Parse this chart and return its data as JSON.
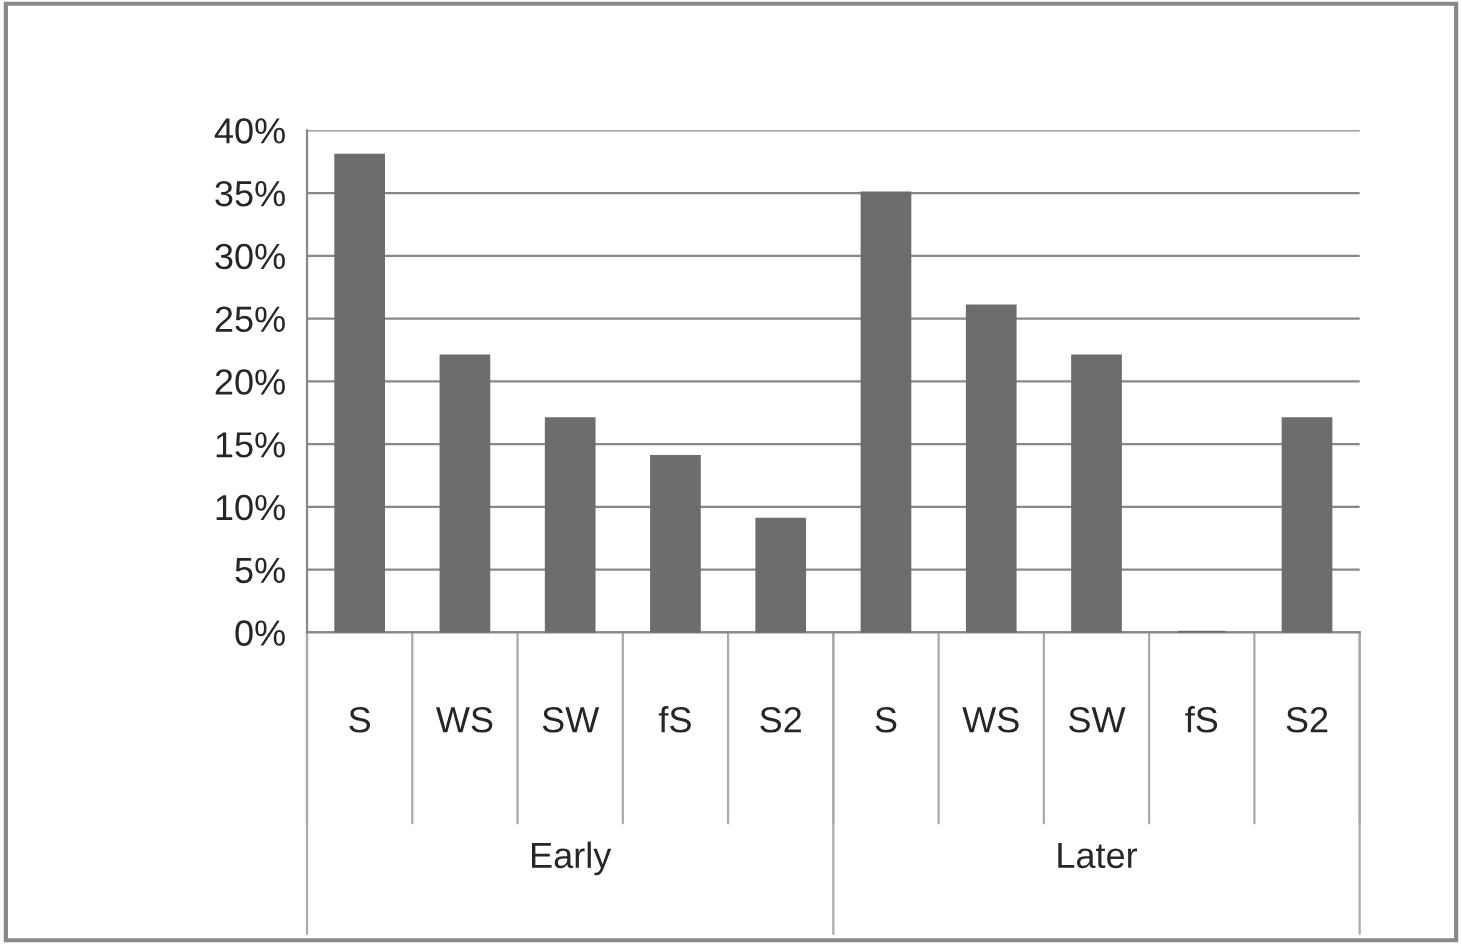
{
  "chart_data": {
    "type": "bar",
    "categories": [
      "S",
      "WS",
      "SW",
      "fS",
      "S2",
      "S",
      "WS",
      "SW",
      "fS",
      "S2"
    ],
    "values": [
      38,
      22,
      17,
      14,
      9,
      35,
      26,
      22,
      0,
      17
    ],
    "color": "#6d6d6d",
    "ylim": [
      0,
      40
    ],
    "yticks": [
      {
        "value": 0,
        "label": "0%"
      },
      {
        "value": 5,
        "label": "5%"
      },
      {
        "value": 10,
        "label": "10%"
      },
      {
        "value": 15,
        "label": "15%"
      },
      {
        "value": 20,
        "label": "20%"
      },
      {
        "value": 25,
        "label": "25%"
      },
      {
        "value": 30,
        "label": "30%"
      },
      {
        "value": 35,
        "label": "35%"
      },
      {
        "value": 40,
        "label": "40%"
      }
    ],
    "annotations": [
      "Early",
      "Later"
    ],
    "grid": "y"
  }
}
